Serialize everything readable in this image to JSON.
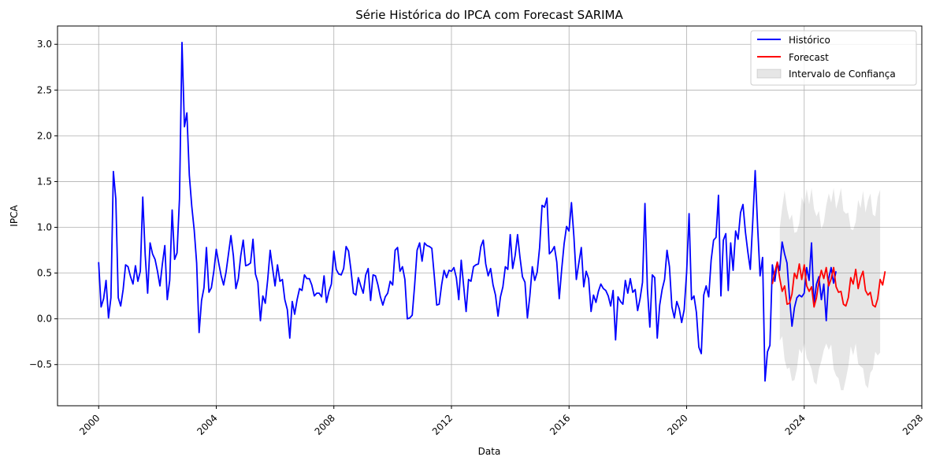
{
  "chart_data": {
    "type": "line",
    "title": "Série Histórica do IPCA com Forecast SARIMA",
    "xlabel": "Data",
    "ylabel": "IPCA",
    "xlim": [
      1998.6,
      2028.0
    ],
    "ylim": [
      -0.95,
      3.2
    ],
    "grid": true,
    "legend_position": "top-right",
    "x_ticks": [
      "2000",
      "2004",
      "2008",
      "2012",
      "2016",
      "2020",
      "2024",
      "2028"
    ],
    "x_tick_values": [
      2000,
      2004,
      2008,
      2012,
      2016,
      2020,
      2024,
      2028
    ],
    "y_ticks": [
      "−0.5",
      "0.0",
      "0.5",
      "1.0",
      "1.5",
      "2.0",
      "2.5",
      "3.0"
    ],
    "y_tick_values": [
      -0.5,
      0.0,
      0.5,
      1.0,
      1.5,
      2.0,
      2.5,
      3.0
    ],
    "colors": {
      "historico": "#0000ff",
      "forecast": "#ff0000",
      "band": "#808080"
    },
    "legend": [
      "Histórico",
      "Forecast",
      "Intervalo de Confiança"
    ],
    "series": [
      {
        "name": "Histórico",
        "x_start": 2000.0,
        "x_step": 0.08333,
        "values": [
          0.62,
          0.13,
          0.22,
          0.42,
          0.01,
          0.23,
          1.61,
          1.31,
          0.23,
          0.14,
          0.32,
          0.59,
          0.57,
          0.46,
          0.38,
          0.58,
          0.41,
          0.52,
          1.33,
          0.7,
          0.28,
          0.83,
          0.71,
          0.65,
          0.52,
          0.36,
          0.6,
          0.8,
          0.21,
          0.42,
          1.19,
          0.65,
          0.72,
          1.31,
          3.02,
          2.1,
          2.25,
          1.57,
          1.23,
          0.97,
          0.61,
          -0.15,
          0.2,
          0.34,
          0.78,
          0.29,
          0.34,
          0.52,
          0.76,
          0.61,
          0.47,
          0.37,
          0.51,
          0.71,
          0.91,
          0.69,
          0.33,
          0.44,
          0.69,
          0.86,
          0.58,
          0.59,
          0.61,
          0.87,
          0.49,
          0.4,
          -0.02,
          0.25,
          0.17,
          0.43,
          0.75,
          0.55,
          0.36,
          0.59,
          0.41,
          0.43,
          0.21,
          0.1,
          -0.21,
          0.19,
          0.05,
          0.21,
          0.33,
          0.31,
          0.48,
          0.44,
          0.44,
          0.37,
          0.25,
          0.28,
          0.28,
          0.24,
          0.47,
          0.18,
          0.3,
          0.38,
          0.74,
          0.54,
          0.49,
          0.48,
          0.55,
          0.79,
          0.74,
          0.53,
          0.28,
          0.26,
          0.45,
          0.36,
          0.28,
          0.48,
          0.55,
          0.2,
          0.48,
          0.47,
          0.37,
          0.24,
          0.15,
          0.24,
          0.28,
          0.41,
          0.37,
          0.75,
          0.78,
          0.52,
          0.57,
          0.43,
          0.0,
          0.01,
          0.04,
          0.37,
          0.75,
          0.83,
          0.63,
          0.83,
          0.8,
          0.79,
          0.77,
          0.47,
          0.15,
          0.16,
          0.37,
          0.53,
          0.45,
          0.53,
          0.52,
          0.56,
          0.45,
          0.21,
          0.64,
          0.36,
          0.08,
          0.43,
          0.41,
          0.57,
          0.59,
          0.6,
          0.79,
          0.86,
          0.6,
          0.47,
          0.55,
          0.37,
          0.26,
          0.03,
          0.24,
          0.35,
          0.57,
          0.54,
          0.92,
          0.55,
          0.69,
          0.92,
          0.67,
          0.46,
          0.4,
          0.01,
          0.25,
          0.57,
          0.42,
          0.51,
          0.78,
          1.24,
          1.22,
          1.32,
          0.71,
          0.74,
          0.79,
          0.62,
          0.22,
          0.54,
          0.82,
          1.01,
          0.96,
          1.27,
          0.9,
          0.43,
          0.61,
          0.78,
          0.35,
          0.52,
          0.44,
          0.08,
          0.26,
          0.18,
          0.3,
          0.38,
          0.33,
          0.31,
          0.25,
          0.14,
          0.31,
          -0.23,
          0.24,
          0.19,
          0.16,
          0.42,
          0.28,
          0.44,
          0.29,
          0.32,
          0.09,
          0.22,
          0.4,
          1.26,
          0.33,
          -0.09,
          0.48,
          0.45,
          -0.21,
          0.15,
          0.32,
          0.43,
          0.75,
          0.57,
          0.13,
          0.01,
          0.19,
          0.11,
          -0.04,
          0.1,
          0.51,
          1.15,
          0.21,
          0.25,
          0.07,
          -0.31,
          -0.38,
          0.26,
          0.36,
          0.24,
          0.64,
          0.86,
          0.89,
          1.35,
          0.25,
          0.86,
          0.93,
          0.31,
          0.83,
          0.53,
          0.96,
          0.87,
          1.16,
          1.25,
          0.95,
          0.73,
          0.54,
          1.06,
          1.62,
          1.01,
          0.47,
          0.67,
          -0.68,
          -0.36,
          -0.29,
          0.59,
          0.41,
          0.62,
          0.53,
          0.84,
          0.71,
          0.61,
          0.23,
          -0.08,
          0.12,
          0.23,
          0.26,
          0.24,
          0.28,
          0.56,
          0.42,
          0.83,
          0.16,
          0.38,
          0.46,
          0.21,
          0.38,
          -0.02,
          0.44,
          0.56,
          0.39,
          0.52
        ]
      },
      {
        "name": "Forecast",
        "x_start": 2022.917,
        "x_step": 0.08333,
        "values": [
          0.38,
          0.51,
          0.62,
          0.44,
          0.3,
          0.36,
          0.16,
          0.17,
          0.27,
          0.5,
          0.44,
          0.6,
          0.43,
          0.59,
          0.36,
          0.3,
          0.35,
          0.13,
          0.23,
          0.41,
          0.53,
          0.44,
          0.56,
          0.36,
          0.44,
          0.56,
          0.35,
          0.29,
          0.3,
          0.16,
          0.14,
          0.23,
          0.45,
          0.38,
          0.54,
          0.33,
          0.45,
          0.52,
          0.31,
          0.26,
          0.29,
          0.15,
          0.13,
          0.22,
          0.43,
          0.37,
          0.52
        ]
      },
      {
        "name": "Intervalo de Confiança",
        "x_start": 2023.167,
        "x_step": 0.08333,
        "lower": [
          -0.24,
          -0.19,
          -0.45,
          -0.55,
          -0.53,
          -0.68,
          -0.67,
          -0.55,
          -0.33,
          -0.38,
          -0.26,
          -0.43,
          -0.48,
          -0.55,
          -0.69,
          -0.72,
          -0.55,
          -0.46,
          -0.34,
          -0.27,
          -0.34,
          -0.28,
          -0.55,
          -0.62,
          -0.65,
          -0.78,
          -0.78,
          -0.66,
          -0.52,
          -0.3,
          -0.4,
          -0.27,
          -0.49,
          -0.52,
          -0.54,
          -0.72,
          -0.76,
          -0.59,
          -0.55,
          -0.36,
          -0.4,
          -0.37
        ],
        "upper": [
          0.99,
          1.22,
          1.4,
          1.2,
          1.08,
          1.14,
          0.94,
          0.95,
          1.05,
          1.33,
          1.25,
          1.42,
          1.25,
          1.43,
          1.2,
          1.12,
          1.18,
          0.98,
          1.05,
          1.24,
          1.37,
          1.27,
          1.43,
          1.2,
          1.3,
          1.43,
          1.18,
          1.15,
          1.16,
          0.98,
          0.97,
          1.06,
          1.3,
          1.21,
          1.4,
          1.16,
          1.29,
          1.37,
          1.14,
          1.12,
          1.33,
          1.41
        ]
      }
    ]
  }
}
